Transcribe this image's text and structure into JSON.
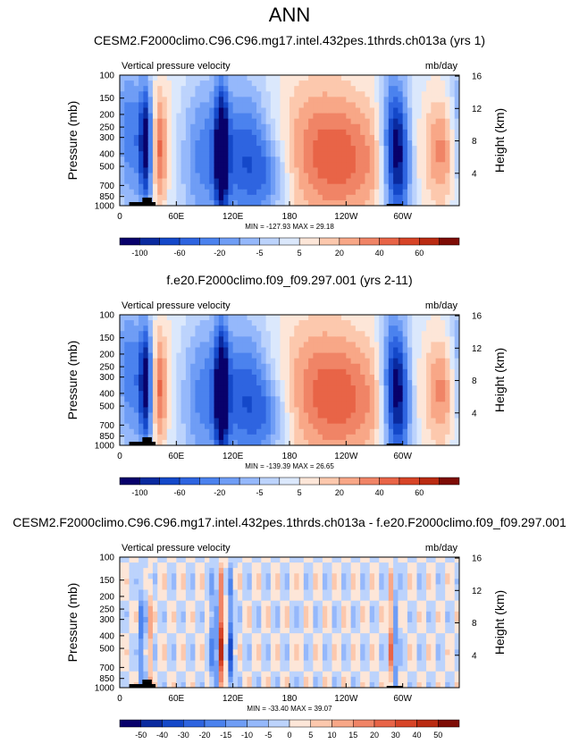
{
  "main_title": "ANN",
  "panels": [
    {
      "title": "CESM2.F2000climo.C96.C96.mg17.intel.432pes.1thrds.ch013a (yrs 1)",
      "left_label": "Vertical pressure velocity",
      "right_label": "mb/day",
      "stats": "MIN = -127.93  MAX = 29.18"
    },
    {
      "title": "f.e20.F2000climo.f09_f09.297.001 (yrs 2-11)",
      "left_label": "Vertical pressure velocity",
      "right_label": "mb/day",
      "stats": "MIN = -139.39  MAX = 26.65"
    },
    {
      "title": "CESM2.F2000climo.C96.C96.mg17.intel.432pes.1thrds.ch013a - f.e20.F2000climo.f09_f09.297.001",
      "left_label": "Vertical pressure velocity",
      "right_label": "mb/day",
      "stats": "MIN = -33.40  MAX = 39.07"
    }
  ],
  "chart_data": [
    {
      "type": "heatmap",
      "variable": "Vertical pressure velocity",
      "units": "mb/day",
      "xlabel": "",
      "ylabel": "Pressure (mb)",
      "y2label": "Height (km)",
      "xticks": [
        "0",
        "60E",
        "120E",
        "180",
        "120W",
        "60W"
      ],
      "x_tick_lon": [
        0,
        60,
        120,
        180,
        240,
        300
      ],
      "xlim": [
        0,
        360
      ],
      "yticks": [
        100,
        150,
        200,
        250,
        300,
        400,
        500,
        700,
        850,
        1000
      ],
      "ylim": [
        1000,
        100
      ],
      "y2ticks": [
        4,
        8,
        12,
        16
      ],
      "colorbar_levels": [
        "-100",
        "-60",
        "-20",
        "-5",
        "5",
        "20",
        "40",
        "60"
      ],
      "colorbar_colors": [
        "#08016b",
        "#0a2a9f",
        "#1448c9",
        "#2e64e0",
        "#4b82ee",
        "#6f9df5",
        "#95b8fb",
        "#bcd3fc",
        "#dbe8fc",
        "#fde6d8",
        "#fcc8ad",
        "#f8a787",
        "#f08466",
        "#e86447",
        "#d74427",
        "#ba2b12",
        "#7e0c05"
      ],
      "min": -127.93,
      "max": 29.18
    },
    {
      "type": "heatmap",
      "variable": "Vertical pressure velocity",
      "units": "mb/day",
      "xlabel": "",
      "ylabel": "Pressure (mb)",
      "y2label": "Height (km)",
      "xticks": [
        "0",
        "60E",
        "120E",
        "180",
        "120W",
        "60W"
      ],
      "x_tick_lon": [
        0,
        60,
        120,
        180,
        240,
        300
      ],
      "xlim": [
        0,
        360
      ],
      "yticks": [
        100,
        150,
        200,
        250,
        300,
        400,
        500,
        700,
        850,
        1000
      ],
      "ylim": [
        1000,
        100
      ],
      "y2ticks": [
        4,
        8,
        12,
        16
      ],
      "colorbar_levels": [
        "-100",
        "-60",
        "-20",
        "-5",
        "5",
        "20",
        "40",
        "60"
      ],
      "colorbar_colors": [
        "#08016b",
        "#0a2a9f",
        "#1448c9",
        "#2e64e0",
        "#4b82ee",
        "#6f9df5",
        "#95b8fb",
        "#bcd3fc",
        "#dbe8fc",
        "#fde6d8",
        "#fcc8ad",
        "#f8a787",
        "#f08466",
        "#e86447",
        "#d74427",
        "#ba2b12",
        "#7e0c05"
      ],
      "min": -139.39,
      "max": 26.65
    },
    {
      "type": "heatmap",
      "variable": "Vertical pressure velocity",
      "units": "mb/day",
      "xlabel": "",
      "ylabel": "Pressure (mb)",
      "y2label": "Height (km)",
      "xticks": [
        "0",
        "60E",
        "120E",
        "180",
        "120W",
        "60W"
      ],
      "x_tick_lon": [
        0,
        60,
        120,
        180,
        240,
        300
      ],
      "xlim": [
        0,
        360
      ],
      "yticks": [
        100,
        150,
        200,
        250,
        300,
        400,
        500,
        700,
        850,
        1000
      ],
      "ylim": [
        1000,
        100
      ],
      "y2ticks": [
        4,
        8,
        12,
        16
      ],
      "colorbar_levels": [
        "-50",
        "-40",
        "-30",
        "-20",
        "-15",
        "-10",
        "-5",
        "0",
        "5",
        "10",
        "15",
        "20",
        "30",
        "40",
        "50"
      ],
      "colorbar_colors": [
        "#08016b",
        "#0a2a9f",
        "#1448c9",
        "#2e64e0",
        "#4b82ee",
        "#6f9df5",
        "#95b8fb",
        "#bcd3fc",
        "#fde6d8",
        "#fcc8ad",
        "#f8a787",
        "#f08466",
        "#e86447",
        "#d74427",
        "#ba2b12",
        "#7e0c05"
      ],
      "min": -33.4,
      "max": 39.07
    }
  ]
}
